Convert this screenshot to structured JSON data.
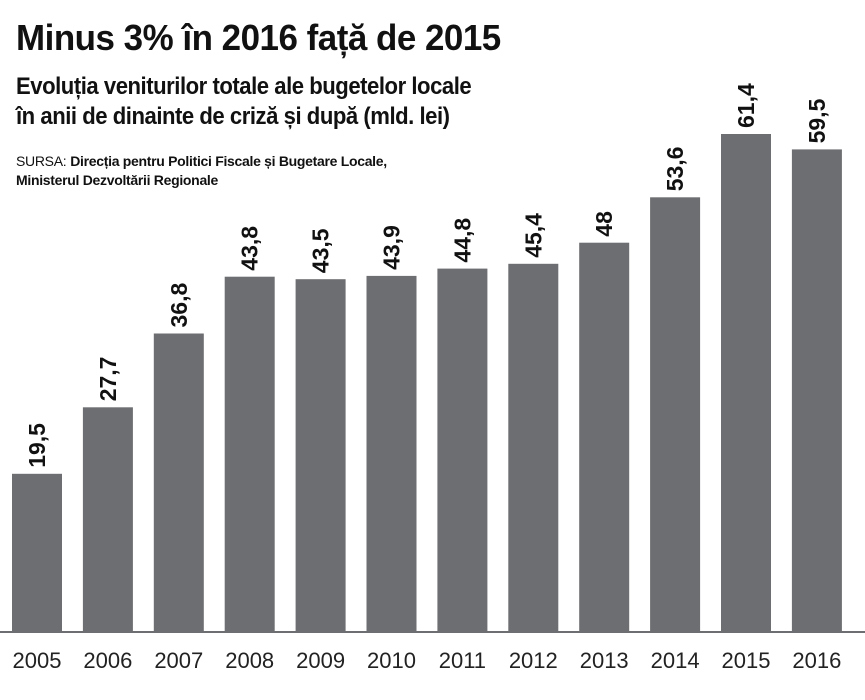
{
  "header": {
    "title": "Minus 3% în 2016 față de 2015",
    "subtitle_line1": "Evoluția veniturilor totale ale bugetelor locale",
    "subtitle_line2": "în anii de dinainte de criză și după (mld. lei)",
    "source_label": "SURSA:",
    "source_text_line1": "Direcția pentru Politici Fiscale și Bugetare Locale,",
    "source_text_line2": "Ministerul Dezvoltării Regionale"
  },
  "colors": {
    "bar": "#6d6e71",
    "text": "#111111",
    "background": "#ffffff"
  },
  "chart_data": {
    "type": "bar",
    "title": "Minus 3% în 2016 față de 2015",
    "subtitle": "Evoluția veniturilor totale ale bugetelor locale în anii de dinainte de criză și după (mld. lei)",
    "xlabel": "",
    "ylabel": "",
    "categories": [
      "2005",
      "2006",
      "2007",
      "2008",
      "2009",
      "2010",
      "2011",
      "2012",
      "2013",
      "2014",
      "2015",
      "2016"
    ],
    "values": [
      19.5,
      27.7,
      36.8,
      43.8,
      43.5,
      43.9,
      44.8,
      45.4,
      48,
      53.6,
      61.4,
      59.5
    ],
    "value_labels": [
      "19,5",
      "27,7",
      "36,8",
      "43,8",
      "43,5",
      "43,9",
      "44,8",
      "45,4",
      "48",
      "53,6",
      "61,4",
      "59,5"
    ],
    "ylim": [
      0,
      61.4
    ],
    "grid": false,
    "legend": "none",
    "data_labels": "above bars, rotated vertically"
  }
}
